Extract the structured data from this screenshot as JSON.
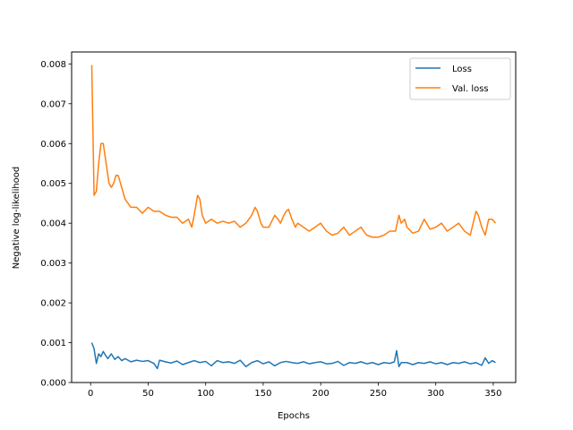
{
  "chart_data": {
    "type": "line",
    "title": "",
    "xlabel": "Epochs",
    "ylabel": "Negative log-likelihood",
    "xlim": [
      -16.5,
      369.5
    ],
    "ylim": [
      0.0,
      0.0083
    ],
    "xticks": [
      0,
      50,
      100,
      150,
      200,
      250,
      300,
      350
    ],
    "xtick_labels": [
      "0",
      "50",
      "100",
      "150",
      "200",
      "250",
      "300",
      "350"
    ],
    "yticks": [
      0.0,
      0.001,
      0.002,
      0.003,
      0.004,
      0.005,
      0.006,
      0.007,
      0.008
    ],
    "ytick_labels": [
      "0.000",
      "0.001",
      "0.002",
      "0.003",
      "0.004",
      "0.005",
      "0.006",
      "0.007",
      "0.008"
    ],
    "grid": false,
    "legend_position": "top-right",
    "series": [
      {
        "name": "Loss",
        "color": "#1f77b4",
        "x": [
          1,
          3,
          5,
          7,
          9,
          11,
          13,
          15,
          18,
          21,
          24,
          27,
          30,
          35,
          40,
          45,
          50,
          55,
          58,
          60,
          65,
          70,
          75,
          80,
          85,
          90,
          95,
          100,
          105,
          110,
          115,
          120,
          125,
          130,
          135,
          140,
          145,
          150,
          155,
          160,
          165,
          170,
          175,
          180,
          185,
          190,
          195,
          200,
          205,
          210,
          215,
          220,
          225,
          230,
          235,
          240,
          245,
          250,
          255,
          260,
          264,
          266,
          268,
          270,
          275,
          280,
          285,
          290,
          295,
          300,
          305,
          310,
          315,
          320,
          325,
          330,
          335,
          340,
          343,
          346,
          349,
          352
        ],
        "values": [
          0.001,
          0.00085,
          0.00048,
          0.00072,
          0.00065,
          0.00078,
          0.00068,
          0.0006,
          0.00072,
          0.00058,
          0.00065,
          0.00055,
          0.0006,
          0.00052,
          0.00056,
          0.00053,
          0.00055,
          0.00048,
          0.00035,
          0.00056,
          0.00052,
          0.00049,
          0.00054,
          0.00045,
          0.0005,
          0.00055,
          0.0005,
          0.00053,
          0.00042,
          0.00055,
          0.0005,
          0.00052,
          0.00048,
          0.00056,
          0.0004,
          0.0005,
          0.00055,
          0.00047,
          0.00052,
          0.00042,
          0.0005,
          0.00053,
          0.0005,
          0.00048,
          0.00052,
          0.00047,
          0.0005,
          0.00052,
          0.00047,
          0.00048,
          0.00053,
          0.00043,
          0.0005,
          0.00048,
          0.00052,
          0.00047,
          0.0005,
          0.00045,
          0.0005,
          0.00048,
          0.00052,
          0.0008,
          0.0004,
          0.0005,
          0.0005,
          0.00045,
          0.0005,
          0.00048,
          0.00052,
          0.00047,
          0.0005,
          0.00045,
          0.0005,
          0.00048,
          0.00052,
          0.00047,
          0.0005,
          0.00043,
          0.00062,
          0.00048,
          0.00055,
          0.0005
        ]
      },
      {
        "name": "Val. loss",
        "color": "#ff7f0e",
        "x": [
          1,
          3,
          5,
          7,
          9,
          11,
          13,
          16,
          18,
          20,
          22,
          24,
          27,
          30,
          35,
          40,
          45,
          50,
          55,
          60,
          65,
          70,
          75,
          80,
          85,
          88,
          90,
          93,
          95,
          97,
          100,
          105,
          110,
          115,
          120,
          125,
          130,
          135,
          140,
          143,
          145,
          148,
          150,
          155,
          160,
          163,
          165,
          168,
          170,
          172,
          175,
          178,
          180,
          185,
          190,
          195,
          200,
          205,
          210,
          215,
          220,
          225,
          230,
          235,
          240,
          245,
          250,
          255,
          260,
          265,
          268,
          270,
          273,
          275,
          280,
          285,
          290,
          295,
          300,
          305,
          310,
          315,
          320,
          325,
          330,
          335,
          337,
          340,
          343,
          346,
          349,
          352
        ],
        "values": [
          0.00797,
          0.0047,
          0.0048,
          0.0055,
          0.006,
          0.006,
          0.0056,
          0.005,
          0.0049,
          0.005,
          0.0052,
          0.0052,
          0.0049,
          0.0046,
          0.0044,
          0.0044,
          0.00425,
          0.0044,
          0.0043,
          0.0043,
          0.0042,
          0.00415,
          0.00415,
          0.004,
          0.0041,
          0.0039,
          0.0042,
          0.0047,
          0.0046,
          0.0042,
          0.004,
          0.0041,
          0.004,
          0.00405,
          0.004,
          0.00405,
          0.0039,
          0.004,
          0.0042,
          0.0044,
          0.0043,
          0.004,
          0.0039,
          0.0039,
          0.0042,
          0.0041,
          0.004,
          0.0042,
          0.0043,
          0.00435,
          0.0041,
          0.0039,
          0.004,
          0.0039,
          0.0038,
          0.0039,
          0.004,
          0.0038,
          0.0037,
          0.00375,
          0.0039,
          0.0037,
          0.0038,
          0.0039,
          0.0037,
          0.00365,
          0.00365,
          0.0037,
          0.0038,
          0.0038,
          0.0042,
          0.004,
          0.0041,
          0.0039,
          0.00375,
          0.0038,
          0.0041,
          0.00385,
          0.0039,
          0.004,
          0.0038,
          0.0039,
          0.004,
          0.0038,
          0.0037,
          0.0043,
          0.0042,
          0.0039,
          0.0037,
          0.0041,
          0.0041,
          0.004
        ]
      }
    ]
  }
}
